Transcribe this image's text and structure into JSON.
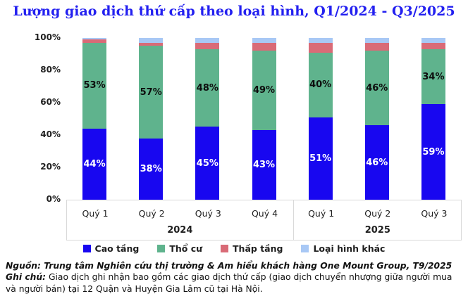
{
  "title": "Lượng giao dịch thứ cấp theo loại hình, Q1/2024 - Q3/2025",
  "title_color": "#2320f0",
  "chart_data": {
    "type": "bar",
    "stacked": true,
    "unit": "%",
    "ylim": [
      0,
      100
    ],
    "grid": false,
    "legend_position": "bottom",
    "categories": [
      "Quý 1",
      "Quý 2",
      "Quý 3",
      "Quý 4",
      "Quý 1",
      "Quý 2",
      "Quý 3"
    ],
    "groups": [
      {
        "label": "2024",
        "quarters": [
          "Quý 1",
          "Quý 2",
          "Quý 3",
          "Quý 4"
        ]
      },
      {
        "label": "2025",
        "quarters": [
          "Quý 1",
          "Quý 2",
          "Quý 3"
        ]
      }
    ],
    "series": [
      {
        "name": "Cao tầng",
        "color": "#1807f0",
        "label_color": "#ffffff",
        "values": [
          44,
          38,
          45,
          43,
          51,
          46,
          59
        ],
        "labels": [
          "44%",
          "38%",
          "45%",
          "43%",
          "51%",
          "46%",
          "59%"
        ]
      },
      {
        "name": "Thổ cư",
        "color": "#5fb38d",
        "label_color": "#0d0d0d",
        "values": [
          53,
          57,
          48,
          49,
          40,
          46,
          34
        ],
        "labels": [
          "53%",
          "57%",
          "48%",
          "49%",
          "40%",
          "46%",
          "34%"
        ]
      },
      {
        "name": "Thấp tầng",
        "color": "#d96b77",
        "label_color": null,
        "values": [
          2,
          2,
          4,
          5,
          6,
          5,
          4
        ],
        "labels": null
      },
      {
        "name": "Loại hình khác",
        "color": "#a8c8f5",
        "label_color": null,
        "values": [
          1,
          3,
          3,
          3,
          3,
          3,
          3
        ],
        "labels": null
      }
    ],
    "y_axis": {
      "values": [
        100,
        80,
        60,
        40,
        20,
        0
      ],
      "labels": [
        "100%",
        "80%",
        "60%",
        "40%",
        "20%",
        "0%"
      ]
    }
  },
  "footer": {
    "source": "Nguồn: Trung tâm Nghiên cứu thị trường & Am hiểu khách hàng One Mount Group, T9/2025",
    "note_label": "Ghi chú:",
    "note_text": " Giao dịch ghi nhận bao gồm các giao dịch thứ cấp (giao dịch chuyển nhượng giữa người mua và người bán) tại 12 Quận và Huyện Gia Lâm cũ tại Hà Nội."
  }
}
